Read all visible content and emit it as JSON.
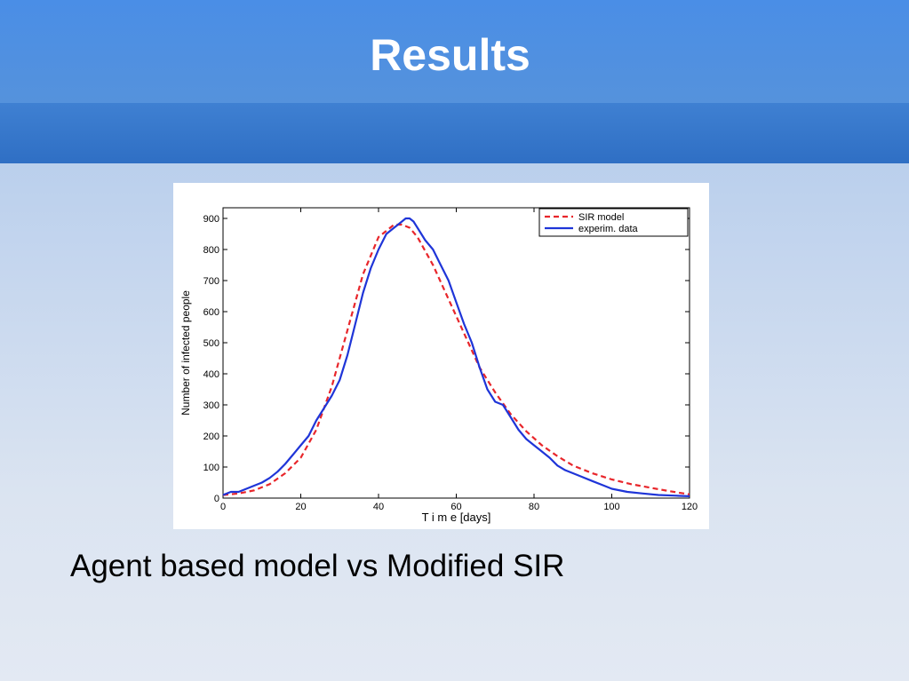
{
  "slide": {
    "title": "Results",
    "caption": "Agent based model vs Modified SIR"
  },
  "colors": {
    "sir_model": "#e8262b",
    "experim_data": "#1f35d8"
  },
  "chart_data": {
    "type": "line",
    "title": "",
    "xlabel": "T i m e [days]",
    "ylabel": "Number of infected people",
    "xlim": [
      0,
      120
    ],
    "ylim": [
      0,
      900
    ],
    "xticks": [
      0,
      20,
      40,
      60,
      80,
      100,
      120
    ],
    "yticks": [
      0,
      100,
      200,
      300,
      400,
      500,
      600,
      700,
      800,
      900
    ],
    "legend_position": "top-right",
    "grid": false,
    "series": [
      {
        "name": "SIR model",
        "style": "dashed",
        "color": "#e8262b",
        "x": [
          0,
          4,
          8,
          12,
          16,
          20,
          24,
          28,
          32,
          36,
          40,
          44,
          46,
          48,
          50,
          54,
          58,
          62,
          66,
          70,
          74,
          78,
          82,
          86,
          90,
          95,
          100,
          105,
          110,
          115,
          120
        ],
        "y": [
          10,
          15,
          25,
          45,
          80,
          130,
          220,
          360,
          540,
          720,
          840,
          880,
          880,
          870,
          840,
          750,
          640,
          530,
          420,
          340,
          270,
          215,
          170,
          135,
          105,
          80,
          60,
          45,
          33,
          22,
          12
        ]
      },
      {
        "name": "experim. data",
        "style": "solid",
        "color": "#1f35d8",
        "x": [
          0,
          2,
          4,
          6,
          8,
          10,
          12,
          14,
          16,
          18,
          20,
          22,
          24,
          26,
          28,
          30,
          32,
          34,
          36,
          38,
          40,
          42,
          44,
          45,
          46,
          47,
          48,
          49,
          50,
          52,
          54,
          56,
          58,
          60,
          62,
          64,
          66,
          68,
          70,
          72,
          74,
          76,
          78,
          80,
          82,
          84,
          86,
          88,
          90,
          92,
          95,
          98,
          100,
          104,
          108,
          112,
          116,
          120
        ],
        "y": [
          10,
          20,
          20,
          30,
          40,
          50,
          65,
          85,
          110,
          140,
          170,
          200,
          250,
          290,
          330,
          380,
          460,
          560,
          660,
          740,
          800,
          850,
          870,
          880,
          890,
          900,
          900,
          890,
          870,
          830,
          800,
          750,
          700,
          630,
          560,
          500,
          420,
          350,
          310,
          300,
          260,
          220,
          190,
          170,
          150,
          130,
          105,
          90,
          80,
          70,
          55,
          40,
          30,
          20,
          15,
          10,
          8,
          6
        ]
      }
    ]
  }
}
